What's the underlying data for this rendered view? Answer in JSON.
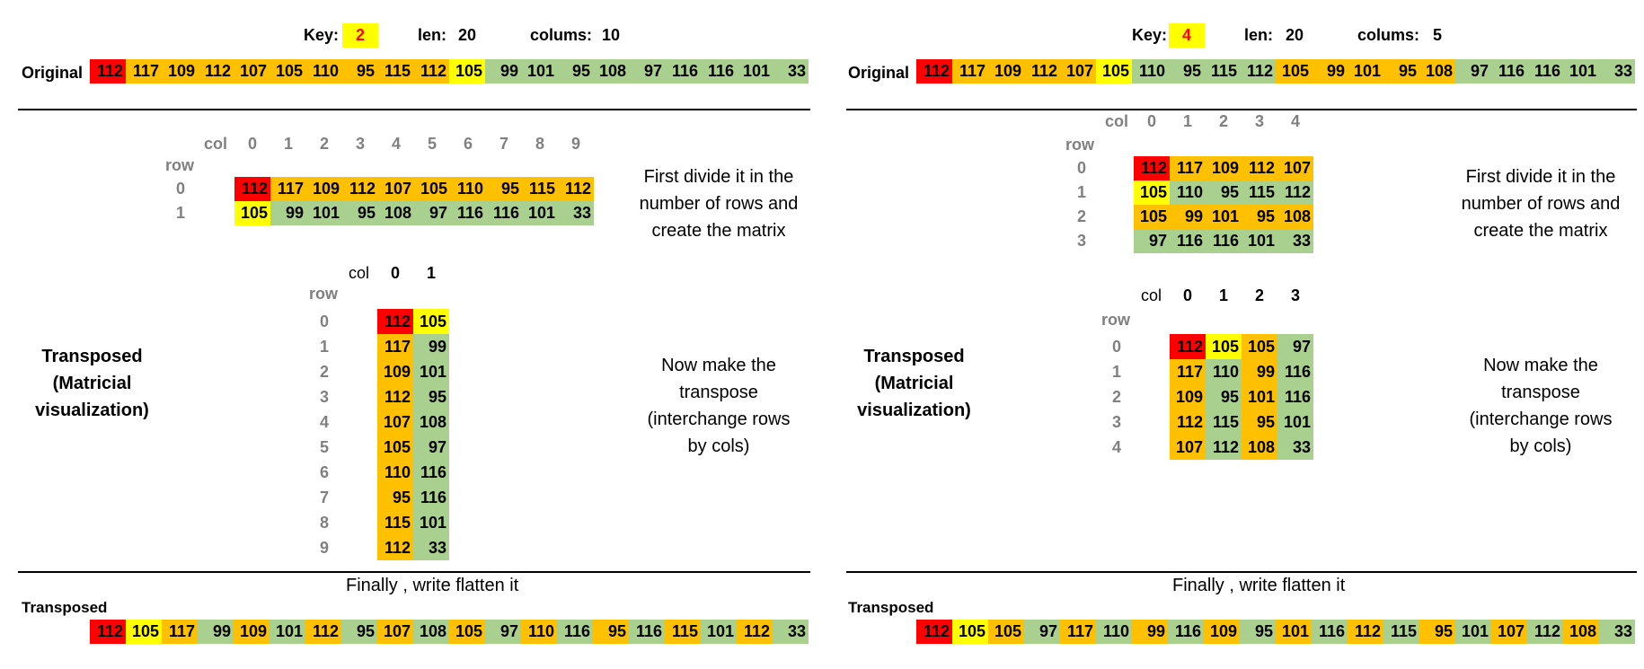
{
  "colors": {
    "red": "#ff0000",
    "yellow": "#ffff00",
    "orange": "#ffc000",
    "green": "#a9d08e"
  },
  "labels": {
    "key": "Key:",
    "len": "len:",
    "columns": "colums:",
    "original": "Original",
    "col": "col",
    "row": "row",
    "transposed": "Transposed",
    "side_title": "Transposed\n(Matricial\nvisualization)",
    "note_divide": "First divide it in the\nnumber of rows and\ncreate the matrix",
    "note_transpose": "Now make the\ntranspose\n(interchange rows\nby cols)",
    "finally": "Finally , write flatten it"
  },
  "panels": [
    {
      "key": "2",
      "len": "20",
      "columns": "10",
      "original": [
        112,
        117,
        109,
        112,
        107,
        105,
        110,
        95,
        115,
        112,
        105,
        99,
        101,
        95,
        108,
        97,
        116,
        116,
        101,
        33
      ],
      "original_colors": [
        "red",
        "orange",
        "orange",
        "orange",
        "orange",
        "orange",
        "orange",
        "orange",
        "orange",
        "orange",
        "yellow",
        "green",
        "green",
        "green",
        "green",
        "green",
        "green",
        "green",
        "green",
        "green"
      ],
      "matrix_cols": [
        "0",
        "1",
        "2",
        "3",
        "4",
        "5",
        "6",
        "7",
        "8",
        "9"
      ],
      "matrix_rows": [
        "0",
        "1"
      ],
      "matrix": [
        [
          112,
          117,
          109,
          112,
          107,
          105,
          110,
          95,
          115,
          112
        ],
        [
          105,
          99,
          101,
          95,
          108,
          97,
          116,
          116,
          101,
          33
        ]
      ],
      "matrix_colors": [
        [
          "red",
          "orange",
          "orange",
          "orange",
          "orange",
          "orange",
          "orange",
          "orange",
          "orange",
          "orange"
        ],
        [
          "yellow",
          "green",
          "green",
          "green",
          "green",
          "green",
          "green",
          "green",
          "green",
          "green"
        ]
      ],
      "t_cols": [
        "0",
        "1"
      ],
      "t_rows": [
        "0",
        "1",
        "2",
        "3",
        "4",
        "5",
        "6",
        "7",
        "8",
        "9"
      ],
      "t_matrix": [
        [
          112,
          105
        ],
        [
          117,
          99
        ],
        [
          109,
          101
        ],
        [
          112,
          95
        ],
        [
          107,
          108
        ],
        [
          105,
          97
        ],
        [
          110,
          116
        ],
        [
          95,
          116
        ],
        [
          115,
          101
        ],
        [
          112,
          33
        ]
      ],
      "t_colors": [
        [
          "red",
          "yellow"
        ],
        [
          "orange",
          "green"
        ],
        [
          "orange",
          "green"
        ],
        [
          "orange",
          "green"
        ],
        [
          "orange",
          "green"
        ],
        [
          "orange",
          "green"
        ],
        [
          "orange",
          "green"
        ],
        [
          "orange",
          "green"
        ],
        [
          "orange",
          "green"
        ],
        [
          "orange",
          "green"
        ]
      ],
      "flat": [
        112,
        105,
        117,
        99,
        109,
        101,
        112,
        95,
        107,
        108,
        105,
        97,
        110,
        116,
        95,
        116,
        115,
        101,
        112,
        33
      ],
      "flat_colors": [
        "red",
        "yellow",
        "orange",
        "green",
        "orange",
        "green",
        "orange",
        "green",
        "orange",
        "green",
        "orange",
        "green",
        "orange",
        "green",
        "orange",
        "green",
        "orange",
        "green",
        "orange",
        "green"
      ]
    },
    {
      "key": "4",
      "len": "20",
      "columns": "5",
      "original": [
        112,
        117,
        109,
        112,
        107,
        105,
        110,
        95,
        115,
        112,
        105,
        99,
        101,
        95,
        108,
        97,
        116,
        116,
        101,
        33
      ],
      "original_colors": [
        "red",
        "orange",
        "orange",
        "orange",
        "orange",
        "yellow",
        "green",
        "green",
        "green",
        "green",
        "orange",
        "orange",
        "orange",
        "orange",
        "orange",
        "green",
        "green",
        "green",
        "green",
        "green"
      ],
      "matrix_cols": [
        "0",
        "1",
        "2",
        "3",
        "4"
      ],
      "matrix_rows": [
        "0",
        "1",
        "2",
        "3"
      ],
      "matrix": [
        [
          112,
          117,
          109,
          112,
          107
        ],
        [
          105,
          110,
          95,
          115,
          112
        ],
        [
          105,
          99,
          101,
          95,
          108
        ],
        [
          97,
          116,
          116,
          101,
          33
        ]
      ],
      "matrix_colors": [
        [
          "red",
          "orange",
          "orange",
          "orange",
          "orange"
        ],
        [
          "yellow",
          "green",
          "green",
          "green",
          "green"
        ],
        [
          "orange",
          "orange",
          "orange",
          "orange",
          "orange"
        ],
        [
          "green",
          "green",
          "green",
          "green",
          "green"
        ]
      ],
      "t_cols": [
        "0",
        "1",
        "2",
        "3"
      ],
      "t_rows": [
        "0",
        "1",
        "2",
        "3",
        "4"
      ],
      "t_matrix": [
        [
          112,
          105,
          105,
          97
        ],
        [
          117,
          110,
          99,
          116
        ],
        [
          109,
          95,
          101,
          116
        ],
        [
          112,
          115,
          95,
          101
        ],
        [
          107,
          112,
          108,
          33
        ]
      ],
      "t_colors": [
        [
          "red",
          "yellow",
          "orange",
          "green"
        ],
        [
          "orange",
          "green",
          "orange",
          "green"
        ],
        [
          "orange",
          "green",
          "orange",
          "green"
        ],
        [
          "orange",
          "green",
          "orange",
          "green"
        ],
        [
          "orange",
          "green",
          "orange",
          "green"
        ]
      ],
      "flat": [
        112,
        105,
        105,
        97,
        117,
        110,
        99,
        116,
        109,
        95,
        101,
        116,
        112,
        115,
        95,
        101,
        107,
        112,
        108,
        33
      ],
      "flat_colors": [
        "red",
        "yellow",
        "orange",
        "green",
        "orange",
        "green",
        "orange",
        "green",
        "orange",
        "green",
        "orange",
        "green",
        "orange",
        "green",
        "orange",
        "green",
        "orange",
        "green",
        "orange",
        "green"
      ]
    }
  ]
}
